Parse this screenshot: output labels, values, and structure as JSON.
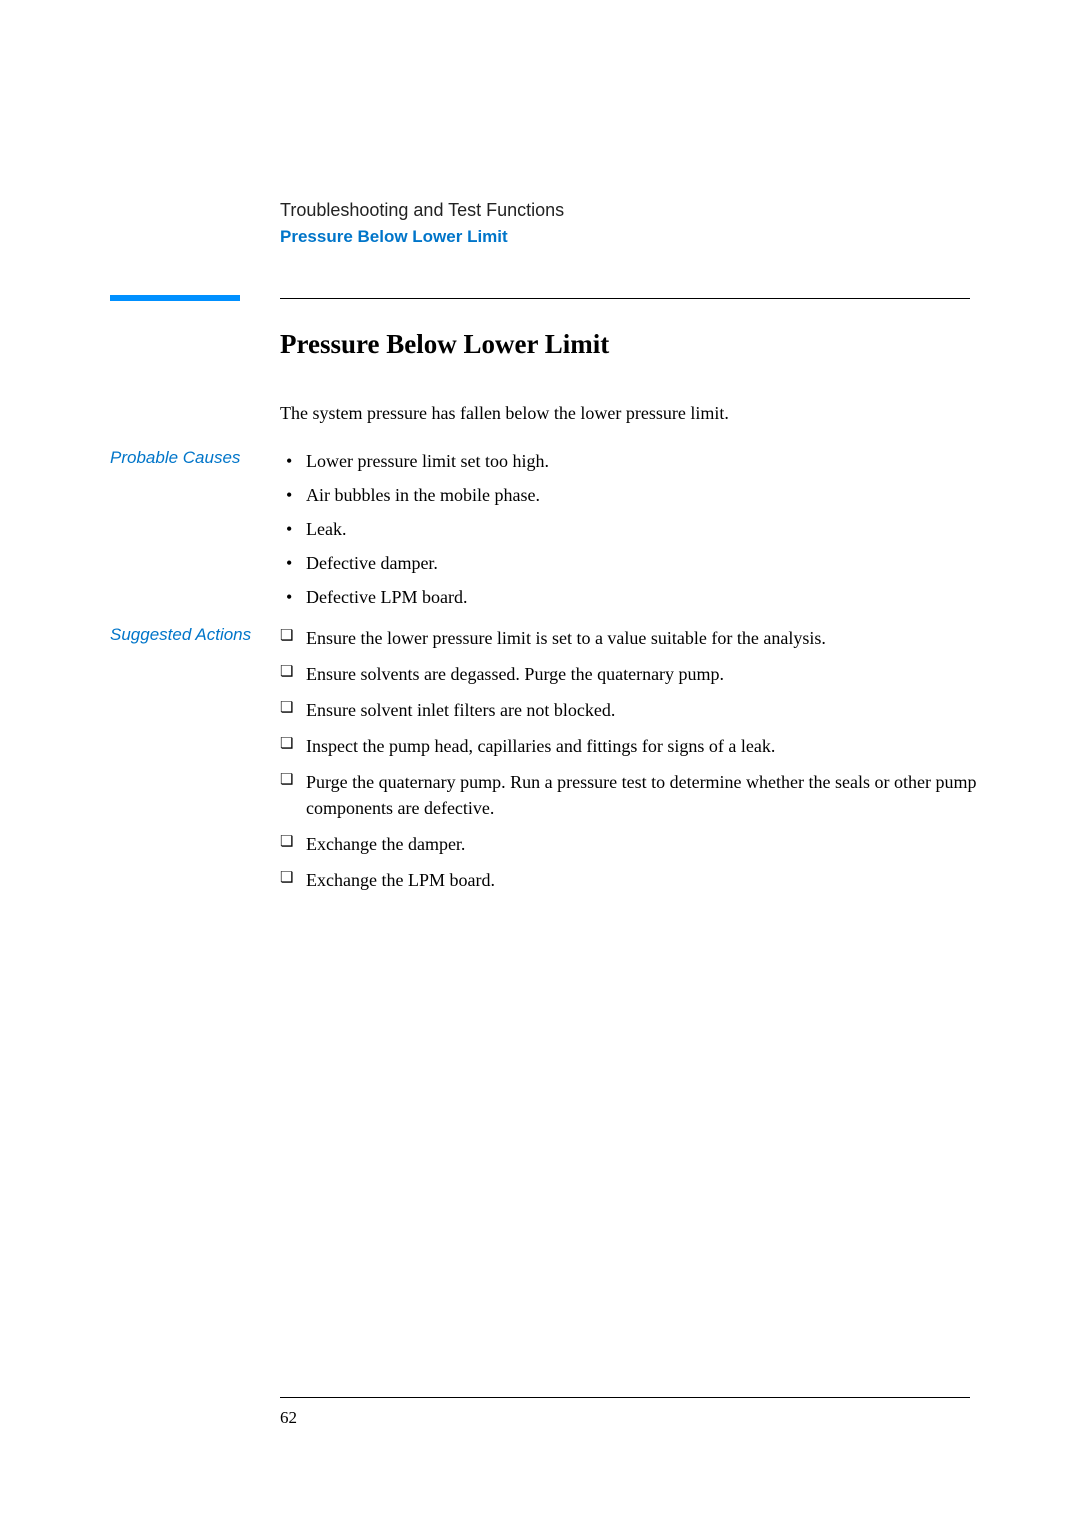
{
  "colors": {
    "accent_blue": "#0075c9",
    "rule_blue": "#0090ff",
    "text": "#000000",
    "chapter_text": "#222222",
    "background": "#ffffff"
  },
  "typography": {
    "body_family": "Georgia, 'Times New Roman', serif",
    "label_family": "Arial, Helvetica, sans-serif",
    "section_title_size_pt": 20,
    "body_size_pt": 13.5,
    "label_size_pt": 12.5
  },
  "header": {
    "chapter": "Troubleshooting and Test Functions",
    "breadcrumb": "Pressure Below Lower Limit"
  },
  "section": {
    "title": "Pressure Below Lower Limit",
    "intro": "The system pressure has fallen below the lower pressure limit."
  },
  "probable_causes": {
    "label": "Probable Causes",
    "items": [
      "Lower pressure limit set too high.",
      "Air bubbles in the mobile phase.",
      "Leak.",
      "Defective damper.",
      "Defective LPM board."
    ]
  },
  "suggested_actions": {
    "label": "Suggested Actions",
    "items": [
      "Ensure the lower pressure limit is set to a value suitable for the analysis.",
      "Ensure solvents are degassed. Purge the quaternary pump.",
      "Ensure solvent inlet filters are not blocked.",
      "Inspect the pump head, capillaries and fittings for signs of a leak.",
      "Purge the quaternary pump. Run a pressure test to determine whether the seals or other pump components are defective.",
      "Exchange the damper.",
      "Exchange the LPM board."
    ]
  },
  "page_number": "62"
}
